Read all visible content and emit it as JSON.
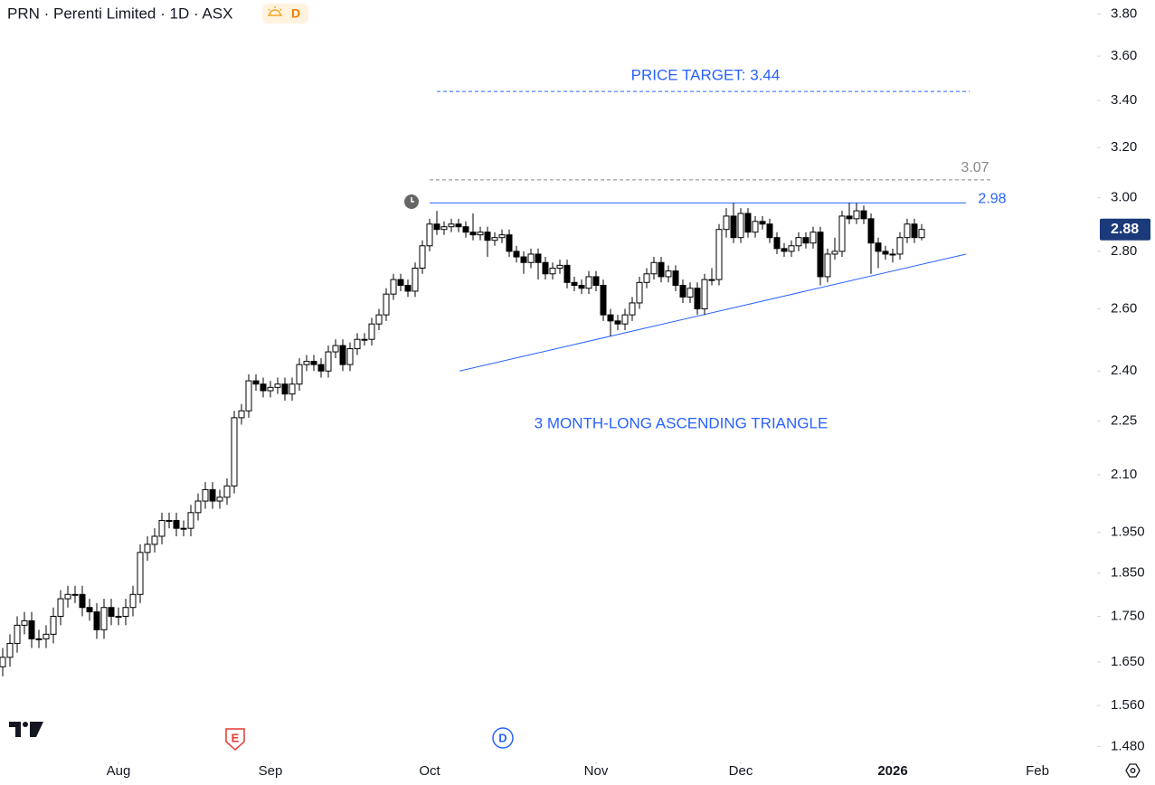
{
  "chart_data": {
    "type": "candlestick",
    "title": "PRN · Perenti Limited · 1D · ASX",
    "badge": "D",
    "log_scale": true,
    "up_color": "#ffffff",
    "down_color": "#000000",
    "annotation_color": "#2962ff",
    "open": [
      1.64,
      1.66,
      1.69,
      1.73,
      1.74,
      1.7,
      1.7,
      1.71,
      1.75,
      1.79,
      1.8,
      1.8,
      1.77,
      1.76,
      1.72,
      1.77,
      1.75,
      1.75,
      1.77,
      1.8,
      1.9,
      1.92,
      1.94,
      1.98,
      1.98,
      1.96,
      1.96,
      2.0,
      2.03,
      2.06,
      2.03,
      2.04,
      2.07,
      2.26,
      2.28,
      2.37,
      2.36,
      2.34,
      2.35,
      2.36,
      2.33,
      2.36,
      2.42,
      2.43,
      2.42,
      2.4,
      2.46,
      2.48,
      2.42,
      2.47,
      2.5,
      2.5,
      2.55,
      2.58,
      2.65,
      2.7,
      2.68,
      2.66,
      2.74,
      2.82,
      2.9,
      2.88,
      2.89,
      2.9,
      2.89,
      2.87,
      2.86,
      2.87,
      2.84,
      2.85,
      2.86,
      2.8,
      2.78,
      2.76,
      2.79,
      2.76,
      2.72,
      2.74,
      2.75,
      2.69,
      2.68,
      2.67,
      2.71,
      2.68,
      2.58,
      2.56,
      2.55,
      2.58,
      2.62,
      2.69,
      2.72,
      2.76,
      2.71,
      2.73,
      2.68,
      2.64,
      2.67,
      2.6,
      2.7,
      2.7,
      2.88,
      2.93,
      2.85,
      2.94,
      2.87,
      2.91,
      2.9,
      2.85,
      2.81,
      2.8,
      2.82,
      2.85,
      2.83,
      2.87,
      2.71,
      2.79,
      2.8,
      2.93,
      2.92,
      2.95,
      2.92,
      2.83,
      2.8,
      2.79,
      2.79,
      2.85,
      2.9,
      2.85
    ],
    "high": [
      1.68,
      1.71,
      1.75,
      1.76,
      1.76,
      1.72,
      1.73,
      1.77,
      1.81,
      1.82,
      1.82,
      1.82,
      1.79,
      1.78,
      1.79,
      1.79,
      1.77,
      1.79,
      1.82,
      1.92,
      1.94,
      1.96,
      2.0,
      2.0,
      2.0,
      1.98,
      2.02,
      2.05,
      2.08,
      2.08,
      2.06,
      2.09,
      2.28,
      2.3,
      2.39,
      2.39,
      2.38,
      2.37,
      2.38,
      2.38,
      2.38,
      2.44,
      2.45,
      2.45,
      2.44,
      2.48,
      2.5,
      2.5,
      2.49,
      2.52,
      2.52,
      2.57,
      2.6,
      2.67,
      2.72,
      2.72,
      2.7,
      2.76,
      2.84,
      2.92,
      2.95,
      2.91,
      2.92,
      2.92,
      2.91,
      2.94,
      2.89,
      2.89,
      2.87,
      2.88,
      2.88,
      2.82,
      2.8,
      2.81,
      2.81,
      2.78,
      2.76,
      2.77,
      2.77,
      2.71,
      2.7,
      2.73,
      2.73,
      2.7,
      2.6,
      2.58,
      2.6,
      2.64,
      2.71,
      2.74,
      2.78,
      2.78,
      2.75,
      2.75,
      2.7,
      2.69,
      2.69,
      2.72,
      2.74,
      2.9,
      2.96,
      2.98,
      2.96,
      2.96,
      2.93,
      2.93,
      2.92,
      2.87,
      2.83,
      2.84,
      2.87,
      2.87,
      2.89,
      2.89,
      2.81,
      2.85,
      2.95,
      2.98,
      2.98,
      2.97,
      2.94,
      2.85,
      2.82,
      2.81,
      2.87,
      2.92,
      2.92,
      2.9
    ],
    "low": [
      1.62,
      1.64,
      1.67,
      1.71,
      1.68,
      1.68,
      1.68,
      1.69,
      1.73,
      1.77,
      1.78,
      1.75,
      1.74,
      1.7,
      1.7,
      1.73,
      1.73,
      1.73,
      1.75,
      1.78,
      1.88,
      1.9,
      1.92,
      1.96,
      1.94,
      1.94,
      1.94,
      1.98,
      2.01,
      2.01,
      2.01,
      2.02,
      2.05,
      2.24,
      2.26,
      2.34,
      2.32,
      2.32,
      2.33,
      2.31,
      2.31,
      2.34,
      2.4,
      2.4,
      2.38,
      2.38,
      2.44,
      2.4,
      2.4,
      2.45,
      2.48,
      2.48,
      2.53,
      2.56,
      2.63,
      2.66,
      2.64,
      2.64,
      2.72,
      2.8,
      2.86,
      2.86,
      2.87,
      2.87,
      2.85,
      2.84,
      2.84,
      2.78,
      2.82,
      2.83,
      2.78,
      2.76,
      2.72,
      2.74,
      2.7,
      2.7,
      2.7,
      2.72,
      2.67,
      2.66,
      2.65,
      2.65,
      2.66,
      2.56,
      2.51,
      2.53,
      2.53,
      2.56,
      2.6,
      2.67,
      2.7,
      2.69,
      2.69,
      2.66,
      2.62,
      2.62,
      2.58,
      2.58,
      2.68,
      2.68,
      2.85,
      2.83,
      2.83,
      2.85,
      2.85,
      2.88,
      2.83,
      2.79,
      2.78,
      2.78,
      2.8,
      2.81,
      2.81,
      2.68,
      2.69,
      2.77,
      2.78,
      2.9,
      2.9,
      2.9,
      2.72,
      2.74,
      2.77,
      2.76,
      2.77,
      2.83,
      2.83,
      2.84
    ],
    "close": [
      1.66,
      1.69,
      1.73,
      1.74,
      1.7,
      1.7,
      1.71,
      1.75,
      1.79,
      1.8,
      1.8,
      1.77,
      1.76,
      1.72,
      1.77,
      1.75,
      1.75,
      1.77,
      1.8,
      1.9,
      1.92,
      1.94,
      1.98,
      1.98,
      1.96,
      1.96,
      2.0,
      2.03,
      2.06,
      2.03,
      2.04,
      2.07,
      2.26,
      2.28,
      2.37,
      2.36,
      2.34,
      2.35,
      2.36,
      2.33,
      2.36,
      2.42,
      2.43,
      2.42,
      2.4,
      2.46,
      2.48,
      2.42,
      2.47,
      2.5,
      2.5,
      2.55,
      2.58,
      2.65,
      2.7,
      2.68,
      2.66,
      2.74,
      2.82,
      2.9,
      2.88,
      2.89,
      2.9,
      2.89,
      2.87,
      2.86,
      2.87,
      2.84,
      2.85,
      2.86,
      2.8,
      2.78,
      2.76,
      2.79,
      2.76,
      2.72,
      2.74,
      2.75,
      2.69,
      2.68,
      2.67,
      2.71,
      2.68,
      2.58,
      2.56,
      2.55,
      2.58,
      2.62,
      2.69,
      2.72,
      2.76,
      2.71,
      2.73,
      2.68,
      2.64,
      2.67,
      2.6,
      2.7,
      2.7,
      2.88,
      2.93,
      2.85,
      2.94,
      2.87,
      2.91,
      2.9,
      2.85,
      2.81,
      2.8,
      2.82,
      2.85,
      2.83,
      2.87,
      2.71,
      2.79,
      2.8,
      2.93,
      2.92,
      2.95,
      2.92,
      2.83,
      2.8,
      2.79,
      2.79,
      2.85,
      2.9,
      2.85,
      2.88
    ],
    "xlim": [
      -0.375,
      151.125
    ],
    "xticks": [
      {
        "value": 16,
        "label": "Aug"
      },
      {
        "value": 37,
        "label": "Sep"
      },
      {
        "value": 59,
        "label": "Oct"
      },
      {
        "value": 82,
        "label": "Nov"
      },
      {
        "value": 102,
        "label": "Dec"
      },
      {
        "value": 123,
        "label": "2026"
      },
      {
        "value": 143,
        "label": "Feb"
      }
    ],
    "ylim": [
      1.455,
      3.87
    ],
    "yticks": [
      {
        "value": 3.8,
        "label": "3.80"
      },
      {
        "value": 3.6,
        "label": "3.60"
      },
      {
        "value": 3.4,
        "label": "3.40"
      },
      {
        "value": 3.2,
        "label": "3.20"
      },
      {
        "value": 3.0,
        "label": "3.00"
      },
      {
        "value": 2.8,
        "label": "2.80"
      },
      {
        "value": 2.6,
        "label": "2.60"
      },
      {
        "value": 2.4,
        "label": "2.40"
      },
      2.25,
      {
        "value": 2.1,
        "label": "2.10"
      },
      {
        "value": 1.95,
        "label": "1.950"
      },
      {
        "value": 1.85,
        "label": "1.850"
      },
      {
        "value": 1.75,
        "label": "1.750"
      },
      {
        "value": 1.65,
        "label": "1.650"
      },
      {
        "value": 1.56,
        "label": "1.560"
      },
      {
        "value": 1.48,
        "label": "1.480"
      }
    ],
    "annotations": {
      "price_target": {
        "value": 3.44,
        "label": "PRICE TARGET: 3.44"
      },
      "level": 3.07,
      "resistance": 2.98,
      "trendline": [
        2.4,
        2.79
      ],
      "pattern_label": "3 MONTH-LONG ASCENDING TRIANGLE"
    },
    "events": [
      "E",
      "D"
    ]
  }
}
